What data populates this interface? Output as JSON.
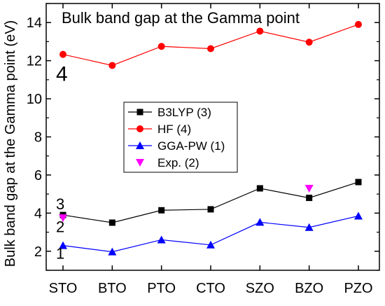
{
  "chart_data": {
    "type": "line",
    "title": "Bulk band gap at the Gamma point",
    "xlabel": "",
    "ylabel": "Bulk band gap at the Gamma point (eV)",
    "categories": [
      "STO",
      "BTO",
      "PTO",
      "CTO",
      "SZO",
      "BZO",
      "PZO"
    ],
    "ylim": [
      1,
      15
    ],
    "yticks": [
      2,
      4,
      6,
      8,
      10,
      12,
      14
    ],
    "legend_position": "center-left",
    "series": [
      {
        "name": "B3LYP (3)",
        "marker": "square",
        "color": "#000000",
        "line": true,
        "values": [
          3.9,
          3.5,
          4.15,
          4.2,
          5.3,
          4.8,
          5.63
        ]
      },
      {
        "name": "HF (4)",
        "marker": "circle",
        "color": "#ff0000",
        "line": true,
        "values": [
          12.33,
          11.75,
          12.75,
          12.63,
          13.55,
          12.97,
          13.9
        ]
      },
      {
        "name": "GGA-PW (1)",
        "marker": "triangle-up",
        "color": "#0000ff",
        "line": true,
        "values": [
          2.3,
          1.97,
          2.6,
          2.33,
          3.52,
          3.25,
          3.85
        ]
      },
      {
        "name": "Exp. (2)",
        "marker": "triangle-down",
        "color": "#ff00ff",
        "line": false,
        "values": [
          3.75,
          null,
          null,
          null,
          null,
          5.3,
          null
        ]
      }
    ],
    "annotations": [
      {
        "text": "4",
        "x": "STO",
        "y": 11.3
      },
      {
        "text": "3",
        "x": "STO",
        "y": 4.5
      },
      {
        "text": "2",
        "x": "STO",
        "y": 3.3
      },
      {
        "text": "1",
        "x": "STO",
        "y": 1.9
      }
    ]
  }
}
